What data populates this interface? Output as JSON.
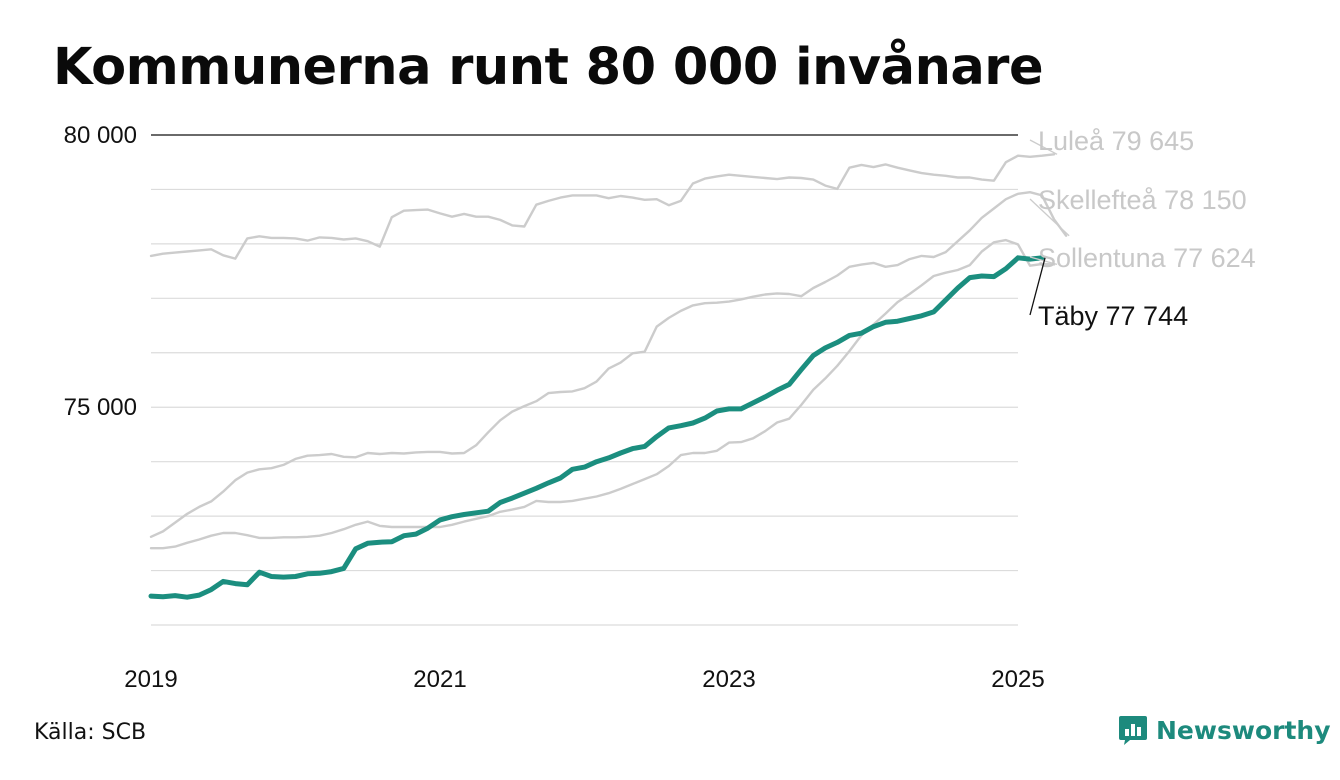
{
  "title": "Kommunerna runt 80 000 invånare",
  "source": "Källa: SCB",
  "brand": {
    "name": "Newsworthy",
    "color": "#1d8a7d"
  },
  "chart_data": {
    "type": "line",
    "title": "Kommunerna runt 80 000 invånare",
    "xlabel": "",
    "ylabel": "",
    "xlim": [
      2019.0,
      2025.0
    ],
    "ylim": [
      71000,
      80000
    ],
    "x_ticks": [
      2019,
      2021,
      2023,
      2025
    ],
    "x_tick_labels": [
      "2019",
      "2021",
      "2023",
      "2025"
    ],
    "y_ticks": [
      75000,
      80000
    ],
    "y_tick_labels": [
      "75 000",
      "80 000"
    ],
    "grid": true,
    "x_step": 0.08333,
    "series": [
      {
        "name": "Luleå",
        "label": "Luleå 79 645",
        "color": "#cccccc",
        "highlight": false,
        "values": [
          77780,
          77820,
          77840,
          77860,
          77880,
          77900,
          77790,
          77730,
          78100,
          78140,
          78110,
          78110,
          78100,
          78060,
          78120,
          78110,
          78080,
          78100,
          78050,
          77950,
          78490,
          78610,
          78620,
          78630,
          78560,
          78500,
          78550,
          78500,
          78500,
          78440,
          78340,
          78320,
          78720,
          78790,
          78850,
          78890,
          78890,
          78890,
          78840,
          78880,
          78850,
          78810,
          78820,
          78710,
          78790,
          79110,
          79200,
          79240,
          79270,
          79250,
          79230,
          79210,
          79190,
          79220,
          79210,
          79180,
          79070,
          79010,
          79400,
          79450,
          79410,
          79460,
          79400,
          79350,
          79300,
          79270,
          79250,
          79220,
          79220,
          79180,
          79160,
          79500,
          79620,
          79600,
          79620,
          79645
        ]
      },
      {
        "name": "Skellefteå",
        "label": "Skellefteå 78 150",
        "color": "#cccccc",
        "highlight": false,
        "values": [
          72620,
          72720,
          72880,
          73040,
          73170,
          73270,
          73450,
          73660,
          73800,
          73860,
          73880,
          73940,
          74050,
          74110,
          74120,
          74140,
          74090,
          74080,
          74160,
          74140,
          74160,
          74150,
          74170,
          74180,
          74180,
          74150,
          74160,
          74300,
          74540,
          74760,
          74920,
          75020,
          75110,
          75260,
          75280,
          75290,
          75350,
          75470,
          75710,
          75820,
          75990,
          76020,
          76480,
          76640,
          76770,
          76870,
          76910,
          76920,
          76940,
          76980,
          77030,
          77070,
          77090,
          77080,
          77040,
          77190,
          77300,
          77420,
          77580,
          77620,
          77650,
          77580,
          77610,
          77720,
          77780,
          77760,
          77850,
          78050,
          78250,
          78480,
          78650,
          78820,
          78920,
          78950,
          78890,
          78450,
          78150
        ]
      },
      {
        "name": "Sollentuna",
        "label": "Sollentuna 77 624",
        "color": "#cccccc",
        "highlight": false,
        "values": [
          72410,
          72410,
          72440,
          72510,
          72570,
          72640,
          72690,
          72690,
          72650,
          72600,
          72600,
          72610,
          72610,
          72620,
          72640,
          72690,
          72760,
          72840,
          72900,
          72820,
          72800,
          72800,
          72800,
          72800,
          72800,
          72840,
          72900,
          72950,
          73000,
          73080,
          73120,
          73170,
          73280,
          73260,
          73260,
          73280,
          73320,
          73360,
          73420,
          73500,
          73590,
          73680,
          73770,
          73920,
          74120,
          74160,
          74160,
          74200,
          74350,
          74360,
          74430,
          74560,
          74720,
          74790,
          75040,
          75320,
          75530,
          75760,
          76030,
          76320,
          76520,
          76720,
          76930,
          77080,
          77240,
          77410,
          77470,
          77520,
          77610,
          77860,
          78030,
          78070,
          77990,
          77600,
          77630,
          77624
        ]
      },
      {
        "name": "Täby",
        "label": "Täby 77 744",
        "color": "#1b8e7f",
        "highlight": true,
        "values": [
          71530,
          71520,
          71540,
          71510,
          71550,
          71650,
          71800,
          71760,
          71740,
          71970,
          71890,
          71880,
          71890,
          71940,
          71950,
          71980,
          72040,
          72400,
          72500,
          72520,
          72530,
          72640,
          72670,
          72780,
          72930,
          72990,
          73030,
          73060,
          73090,
          73250,
          73330,
          73420,
          73510,
          73610,
          73700,
          73860,
          73900,
          74000,
          74070,
          74160,
          74240,
          74280,
          74460,
          74620,
          74660,
          74710,
          74800,
          74930,
          74970,
          74970,
          75080,
          75190,
          75310,
          75420,
          75690,
          75950,
          76090,
          76190,
          76320,
          76360,
          76480,
          76560,
          76580,
          76630,
          76680,
          76750,
          76970,
          77190,
          77380,
          77410,
          77400,
          77544,
          77744,
          77720,
          77744
        ]
      }
    ],
    "end_labels": [
      "Luleå 79 645",
      "Skellefteå 78 150",
      "Täby 77 744",
      "Sollentuna 77 624"
    ]
  }
}
